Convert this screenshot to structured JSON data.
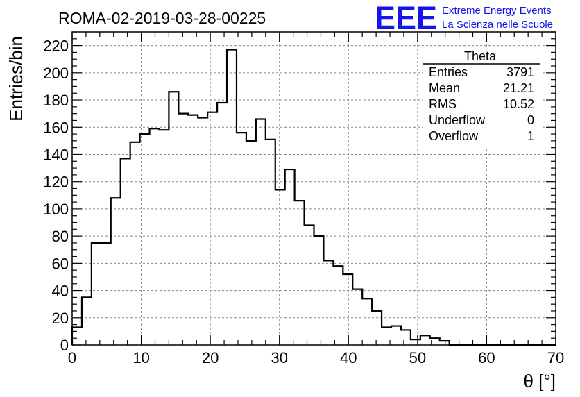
{
  "colors": {
    "histogram": "#000000",
    "grid": "#8a8a8a",
    "logo": "#1414ee",
    "background": "#ffffff"
  },
  "header": {
    "title": "ROMA-02-2019-03-28-00225",
    "logo_text": "EEE",
    "logo_line1": "Extreme Energy Events",
    "logo_line2": "La Scienza nelle Scuole"
  },
  "stats": {
    "title": "Theta",
    "rows": [
      {
        "label": "Entries",
        "value": "3791"
      },
      {
        "label": "Mean",
        "value": "21.21"
      },
      {
        "label": "RMS",
        "value": "10.52"
      },
      {
        "label": "Underflow",
        "value": "0"
      },
      {
        "label": "Overflow",
        "value": "1"
      }
    ]
  },
  "chart_data": {
    "type": "bar",
    "histogram": true,
    "title": "ROMA-02-2019-03-28-00225",
    "xlabel": "θ [°]",
    "ylabel": "Entries/bin",
    "xlim": [
      0,
      70
    ],
    "ylim": [
      0,
      230
    ],
    "bin_width": 1.4,
    "x_ticks": [
      0,
      10,
      20,
      30,
      40,
      50,
      60,
      70
    ],
    "y_ticks": [
      0,
      20,
      40,
      60,
      80,
      100,
      120,
      140,
      160,
      180,
      200,
      220
    ],
    "grid": true,
    "bin_edges_start": 0,
    "values": [
      13,
      35,
      75,
      75,
      108,
      137,
      149,
      155,
      159,
      158,
      186,
      170,
      169,
      167,
      171,
      178,
      217,
      156,
      150,
      166,
      151,
      114,
      129,
      106,
      88,
      80,
      62,
      58,
      52,
      41,
      34,
      25,
      13,
      14,
      11,
      4,
      7,
      5,
      3,
      0,
      0,
      0,
      0,
      0,
      0,
      0,
      0,
      0,
      0,
      0
    ]
  }
}
